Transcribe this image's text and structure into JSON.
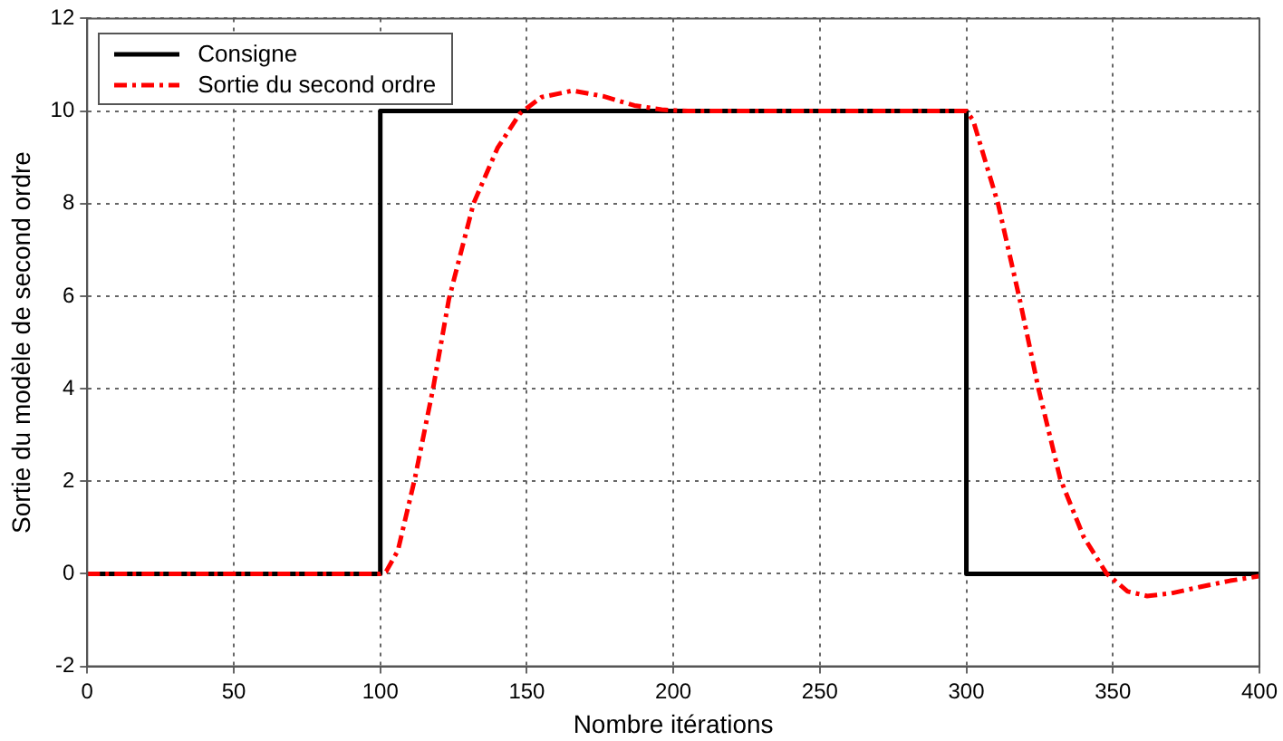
{
  "chart_data": {
    "type": "line",
    "xlabel": "Nombre itérations",
    "ylabel": "Sortie du modèle de second ordre",
    "xlim": [
      0,
      400
    ],
    "ylim": [
      -2,
      12
    ],
    "xticks": [
      0,
      50,
      100,
      150,
      200,
      250,
      300,
      350,
      400
    ],
    "yticks": [
      -2,
      0,
      2,
      4,
      6,
      8,
      10,
      12
    ],
    "grid": true,
    "legend": "top left",
    "marker": "none",
    "series": [
      {
        "name": "Consigne",
        "color": "#000000",
        "line_style": "solid",
        "x": [
          0,
          100,
          100,
          300,
          300,
          400
        ],
        "values": [
          0,
          0,
          10,
          10,
          0,
          0
        ]
      },
      {
        "name": "Sortie du second ordre",
        "color": "#ff0000",
        "line_style": "dashed",
        "x": [
          0,
          100,
          102,
          106,
          111.8,
          118,
          123.4,
          131.8,
          140,
          147.7,
          155,
          165.6,
          176,
          186.7,
          196,
          205,
          250,
          300,
          302.3,
          310.8,
          318.2,
          324.6,
          332,
          340,
          347.9,
          355,
          361.7,
          370,
          380,
          390,
          400
        ],
        "values": [
          0,
          0,
          0.05,
          0.5,
          2.06,
          4.0,
          5.93,
          8.0,
          9.2,
          9.95,
          10.3,
          10.44,
          10.32,
          10.12,
          10.03,
          10,
          10,
          10,
          9.8,
          8.0,
          5.93,
          4.0,
          2.06,
          0.8,
          0,
          -0.38,
          -0.48,
          -0.42,
          -0.28,
          -0.15,
          -0.05
        ]
      }
    ]
  }
}
